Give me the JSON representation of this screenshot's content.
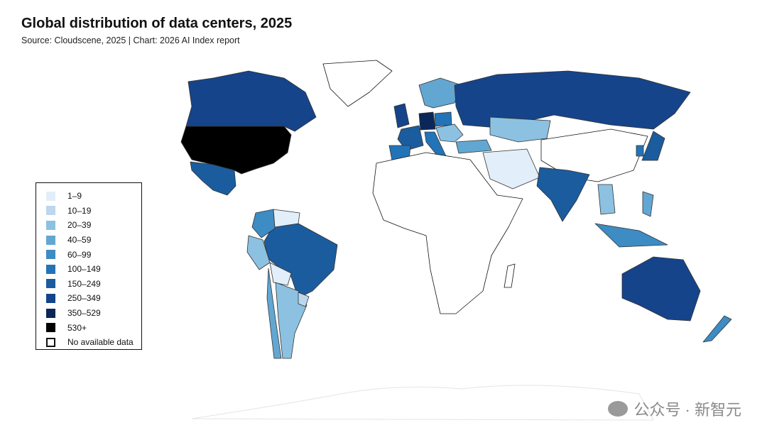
{
  "chart_data": {
    "type": "choropleth",
    "title": "Global distribution of data centers, 2025",
    "subtitle": "Source: Cloudscene, 2025 | Chart: 2026 AI Index report",
    "legend_placement": "left",
    "legend": [
      {
        "label": "1–9",
        "color": "#e2eef9"
      },
      {
        "label": "10–19",
        "color": "#bcd7ee"
      },
      {
        "label": "20–39",
        "color": "#8cc1e1"
      },
      {
        "label": "40–59",
        "color": "#62a7d2"
      },
      {
        "label": "60–99",
        "color": "#3d8cc3"
      },
      {
        "label": "100–149",
        "color": "#2373b8"
      },
      {
        "label": "150–249",
        "color": "#1b5c9e"
      },
      {
        "label": "250–349",
        "color": "#15448a"
      },
      {
        "label": "350–529",
        "color": "#0b2759"
      },
      {
        "label": "530+",
        "color": "#000000"
      },
      {
        "label": "No available data",
        "color": "#ffffff"
      }
    ],
    "regions": [
      {
        "name": "United States",
        "bin": "530+"
      },
      {
        "name": "Canada",
        "bin": "250–349"
      },
      {
        "name": "Mexico",
        "bin": "150–249"
      },
      {
        "name": "Greenland",
        "bin": "No available data"
      },
      {
        "name": "Brazil",
        "bin": "150–249"
      },
      {
        "name": "Colombia",
        "bin": "60–99"
      },
      {
        "name": "Venezuela",
        "bin": "1–9"
      },
      {
        "name": "Peru",
        "bin": "20–39"
      },
      {
        "name": "Bolivia",
        "bin": "1–9"
      },
      {
        "name": "Chile",
        "bin": "40–59"
      },
      {
        "name": "Argentina",
        "bin": "20–39"
      },
      {
        "name": "Uruguay",
        "bin": "10–19"
      },
      {
        "name": "United Kingdom",
        "bin": "250–349"
      },
      {
        "name": "France",
        "bin": "150–249"
      },
      {
        "name": "Spain",
        "bin": "100–149"
      },
      {
        "name": "Germany",
        "bin": "350–529"
      },
      {
        "name": "Italy",
        "bin": "100–149"
      },
      {
        "name": "Nordics",
        "bin": "40–59"
      },
      {
        "name": "Poland",
        "bin": "100–149"
      },
      {
        "name": "Eastern Europe",
        "bin": "20–39"
      },
      {
        "name": "Russia",
        "bin": "250–349"
      },
      {
        "name": "Turkey",
        "bin": "40–59"
      },
      {
        "name": "Kazakhstan",
        "bin": "20–39"
      },
      {
        "name": "China",
        "bin": "No available data"
      },
      {
        "name": "Middle East",
        "bin": "1–9"
      },
      {
        "name": "India",
        "bin": "150–249"
      },
      {
        "name": "Japan",
        "bin": "150–249"
      },
      {
        "name": "South Korea",
        "bin": "100–149"
      },
      {
        "name": "Southeast Asia",
        "bin": "20–39"
      },
      {
        "name": "Philippines",
        "bin": "40–59"
      },
      {
        "name": "Indonesia",
        "bin": "60–99"
      },
      {
        "name": "Australia",
        "bin": "250–349"
      },
      {
        "name": "New Zealand",
        "bin": "60–99"
      },
      {
        "name": "Africa",
        "bin": "No available data"
      },
      {
        "name": "Madagascar",
        "bin": "No available data"
      }
    ]
  },
  "watermark": "公众号 · 新智元"
}
